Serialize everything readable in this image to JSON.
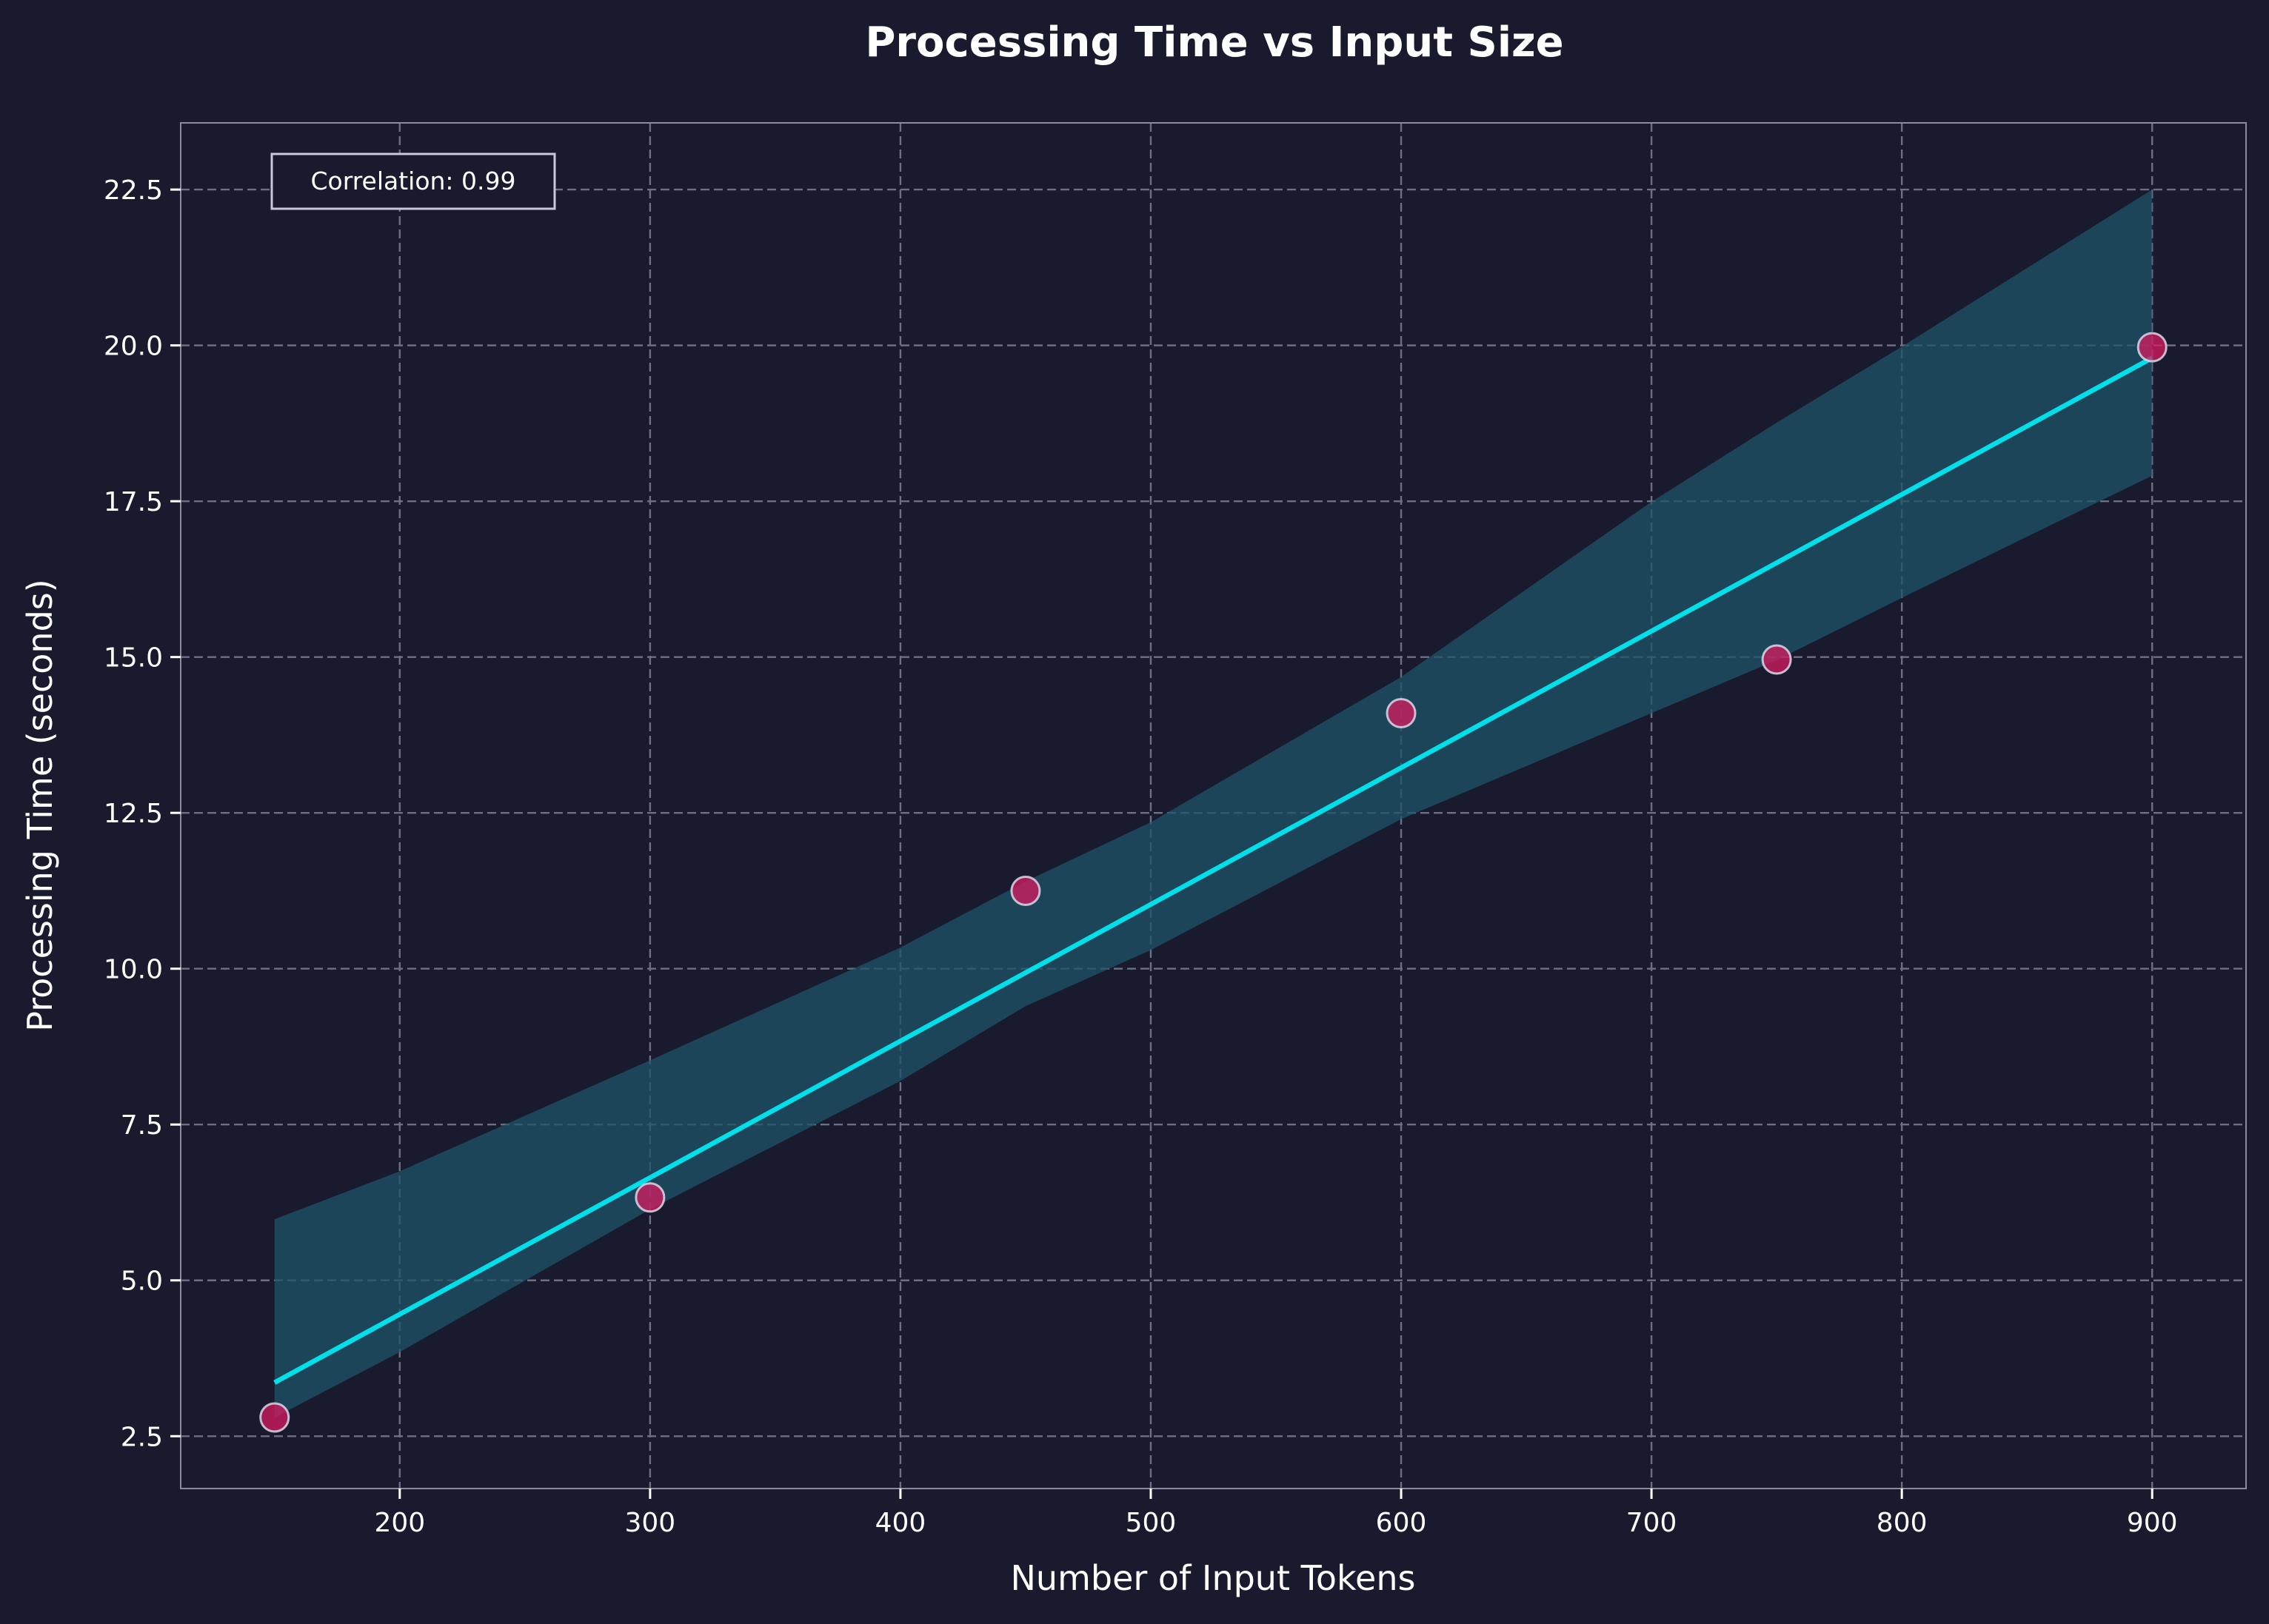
{
  "chart_data": {
    "type": "scatter",
    "title": "Processing Time vs Input Size",
    "xlabel": "Number of Input Tokens",
    "ylabel": "Processing Time (seconds)",
    "xlim": [
      112.5,
      937.5
    ],
    "ylim": [
      1.66,
      23.57
    ],
    "xticks": [
      200,
      300,
      400,
      500,
      600,
      700,
      800,
      900
    ],
    "yticks": [
      2.5,
      5.0,
      7.5,
      10.0,
      12.5,
      15.0,
      17.5,
      20.0,
      22.5
    ],
    "grid": true,
    "points": {
      "x": [
        150,
        300,
        450,
        600,
        750,
        900
      ],
      "y": [
        2.8,
        6.33,
        11.25,
        14.1,
        14.96,
        19.97
      ]
    },
    "regression": {
      "x": [
        150,
        900
      ],
      "y": [
        3.36,
        19.8
      ]
    },
    "confidence_band": {
      "x": [
        150,
        200,
        300,
        400,
        450,
        500,
        600,
        700,
        750,
        800,
        900
      ],
      "lower": [
        2.8,
        3.85,
        6.14,
        8.2,
        9.4,
        10.3,
        12.4,
        14.1,
        14.95,
        15.95,
        17.91
      ],
      "upper": [
        5.98,
        6.75,
        8.53,
        10.34,
        11.4,
        12.35,
        14.68,
        17.49,
        18.76,
        19.98,
        22.5
      ]
    },
    "annotation": "Correlation: 0.99",
    "annotation_placement": "top-left",
    "colors": {
      "background": "#1a1a2e",
      "points": "#d81b60",
      "point_edge": "#d8d8e8",
      "line": "#00e0ea",
      "band": "#1f5468",
      "grid": "#6e6e85",
      "text": "#ffffff"
    }
  }
}
